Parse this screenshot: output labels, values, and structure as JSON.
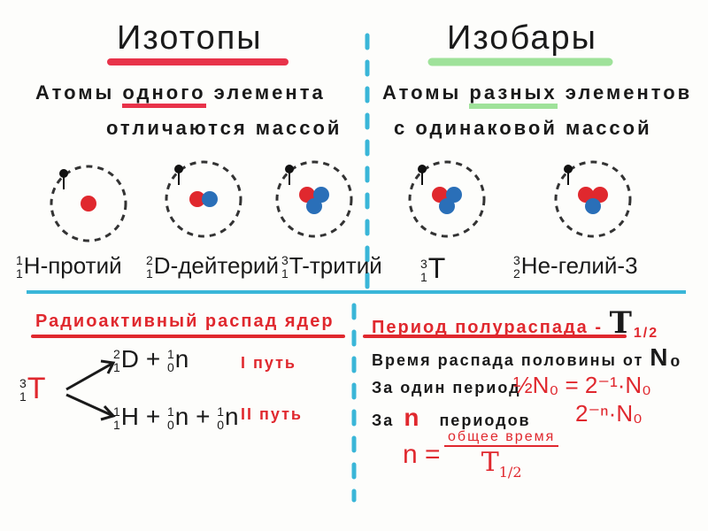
{
  "colors": {
    "red": "#e0282e",
    "blue": "#2a6fb8",
    "green": "#9fe29a",
    "divider": "#3ab6d8"
  },
  "isotopes": {
    "title": "Изотопы",
    "line1": {
      "a": "Атомы ",
      "b": "одного",
      "c": " элемента"
    },
    "line2": "отличаются массой",
    "atoms": [
      {
        "mass": "1",
        "z": "1",
        "label": "H-протий",
        "protons": 1,
        "neutrons": 0
      },
      {
        "mass": "2",
        "z": "1",
        "label": "D-дейтерий",
        "protons": 1,
        "neutrons": 1
      },
      {
        "mass": "3",
        "z": "1",
        "label": "T-тритий",
        "protons": 1,
        "neutrons": 2
      }
    ]
  },
  "isobars": {
    "title": "Изобары",
    "line1": {
      "a": "Атомы ",
      "b": "разных",
      "c": " элементов"
    },
    "line2": "с одинаковой массой",
    "atoms": [
      {
        "mass": "3",
        "z": "1",
        "label": "T",
        "protons": 1,
        "neutrons": 2
      },
      {
        "mass": "3",
        "z": "2",
        "label": "He-гелий-3",
        "protons": 2,
        "neutrons": 1
      }
    ]
  },
  "decay": {
    "title": "Радиоактивный распад ядер",
    "parent": {
      "mass": "3",
      "z": "1",
      "symbol": "T"
    },
    "path1": {
      "d_mass": "2",
      "d_z": "1",
      "d": "D",
      "plus": "+",
      "n_mass": "1",
      "n_z": "0",
      "n": "n",
      "label": "I путь"
    },
    "path2": {
      "h_mass": "1",
      "h_z": "1",
      "h": "H",
      "plus": "+",
      "n_mass": "1",
      "n_z": "0",
      "n": "n",
      "label": "II путь"
    }
  },
  "halflife": {
    "title": "Период полураспада - ",
    "symbol": "T",
    "sub": "1/2",
    "line1": "Время распада половины от",
    "n0": "N₀",
    "line2": "За один период",
    "formula1": "½N₀ = 2⁻¹·N₀",
    "line3a": "За",
    "line3n": "n",
    "line3b": "периодов",
    "formula2": "2⁻ⁿ·N₀",
    "n_eq": "n =",
    "numerator": "общее время",
    "denominator": "T",
    "den_sub": "1/2"
  }
}
